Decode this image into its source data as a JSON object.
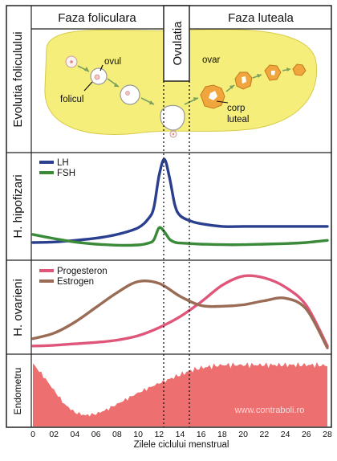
{
  "phases": {
    "follicular": "Faza foliculara",
    "ovulation": "Ovulatia",
    "luteal": "Faza luteala"
  },
  "rows": {
    "follicle": "Evolutia foliculului",
    "pituitary": "H. hipofizari",
    "ovarian": "H. ovarieni",
    "endometrium": "Endometru"
  },
  "ovary_labels": {
    "ovum": "ovul",
    "follicle": "folicul",
    "ovary": "ovar",
    "corpus_line1": "corp",
    "corpus_line2": "luteal"
  },
  "watermark": "www.contraboli.ro",
  "x_axis": {
    "title": "Zilele ciclului menstrual",
    "ticks": [
      "0",
      "02",
      "04",
      "06",
      "08",
      "10",
      "12",
      "14",
      "16",
      "18",
      "20",
      "22",
      "24",
      "26",
      "28"
    ]
  },
  "colors": {
    "lh": "#2b3f8f",
    "fsh": "#3a8a3a",
    "progesterone": "#e0557a",
    "estrogen": "#9a6b55",
    "endometrium": "#ee6f6f",
    "ovary": "#f5ee7a",
    "corpus": "#f0a63c"
  },
  "chart_data": [
    {
      "type": "line",
      "legend_placement": "top-left",
      "x": [
        0,
        2,
        4,
        6,
        8,
        10,
        11,
        11.5,
        12,
        12.5,
        13,
        13.5,
        14,
        15,
        16,
        18,
        20,
        22,
        24,
        26,
        28
      ],
      "series": [
        {
          "name": "LH",
          "values": [
            3,
            3.2,
            3.8,
            4.6,
            6,
            8.5,
            12,
            16,
            28,
            34,
            27,
            17,
            13,
            11,
            10,
            9,
            9,
            9,
            9,
            9,
            9
          ]
        },
        {
          "name": "FSH",
          "values": [
            6,
            4.5,
            3.2,
            2.4,
            2,
            2.1,
            2.8,
            4,
            8.5,
            7,
            4.2,
            3.1,
            2.8,
            2.6,
            2.4,
            2.2,
            2.2,
            2.4,
            2.6,
            3,
            3.8
          ]
        }
      ]
    },
    {
      "type": "line",
      "legend_placement": "top-left",
      "x": [
        0,
        2,
        4,
        6,
        8,
        10,
        12,
        14,
        16,
        18,
        20,
        22,
        24,
        26,
        28
      ],
      "series": [
        {
          "name": "Progesteron",
          "values": [
            2,
            2.2,
            2.6,
            3,
            3.6,
            4.8,
            7,
            10,
            14,
            18.5,
            21,
            20.5,
            18,
            13,
            2
          ]
        },
        {
          "name": "Estrogen",
          "values": [
            4,
            5.5,
            8.5,
            12.5,
            16.5,
            19.5,
            19,
            15.5,
            13,
            12.8,
            13.2,
            14.3,
            15,
            12,
            1.5
          ]
        }
      ]
    },
    {
      "type": "area",
      "x": [
        0,
        1,
        2,
        3,
        4,
        5,
        6,
        7,
        8,
        9,
        10,
        11,
        12,
        13,
        14,
        15,
        16,
        17,
        18,
        19,
        20,
        21,
        22,
        23,
        24,
        25,
        26,
        27,
        28
      ],
      "series": [
        {
          "name": "",
          "values": [
            90,
            72,
            52,
            32,
            20,
            16,
            18,
            24,
            32,
            40,
            48,
            55,
            62,
            68,
            74,
            80,
            84,
            86,
            88,
            88,
            88,
            88,
            88,
            88,
            88,
            88,
            88,
            88,
            87
          ]
        }
      ]
    }
  ]
}
